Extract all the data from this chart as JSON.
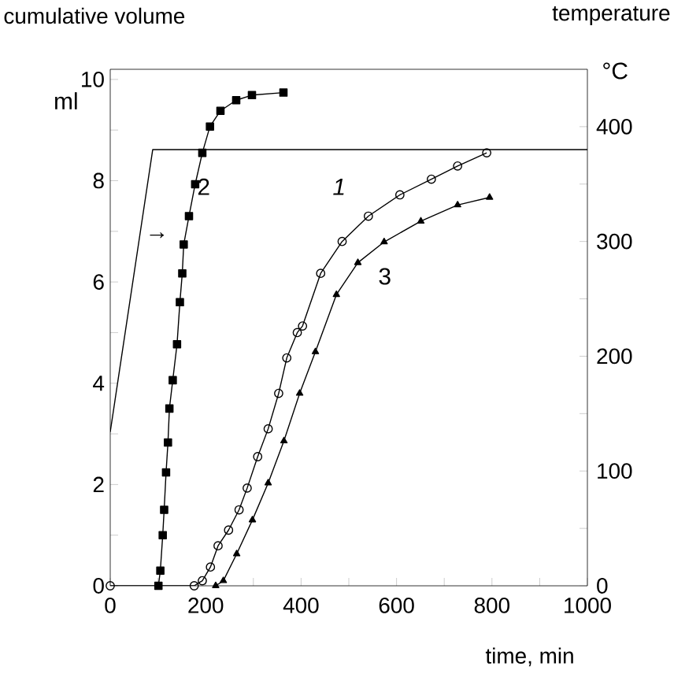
{
  "chart_data": {
    "type": "line",
    "xlabel": "time, min",
    "ylabel": "ml",
    "y2label": "°C",
    "annotations": [
      "cumulative volume",
      "temperature",
      "1",
      "2",
      "3",
      "→"
    ],
    "xlim": [
      0,
      1000
    ],
    "ylim": [
      0,
      10.2
    ],
    "y2lim": [
      0,
      450
    ],
    "xticks": [
      0,
      {
        "value": 100,
        "label": null
      },
      200,
      {
        "value": 300,
        "label": null
      },
      400,
      {
        "value": 500,
        "label": null
      },
      600,
      {
        "value": 700,
        "label": null
      },
      800,
      {
        "value": 900,
        "label": null
      },
      1000
    ],
    "yticks": [
      0,
      {
        "value": 1,
        "label": null
      },
      2,
      {
        "value": 3,
        "label": null
      },
      4,
      {
        "value": 5,
        "label": null
      },
      6,
      {
        "value": 7,
        "label": null
      },
      8,
      {
        "value": 9,
        "label": null
      },
      10
    ],
    "y2ticks": [
      0,
      {
        "value": 50,
        "label": null
      },
      100,
      {
        "value": 150,
        "label": null
      },
      200,
      {
        "value": 250,
        "label": null
      },
      300,
      {
        "value": 350,
        "label": null
      },
      400
    ],
    "grid": false,
    "line_style": "solid",
    "series": [
      {
        "color": "#000000",
        "marker": "circle",
        "x": [
          0,
          176,
          193,
          210,
          226,
          248,
          270,
          287,
          309,
          331,
          353,
          370,
          392,
          403,
          441,
          486,
          541,
          607,
          673,
          728,
          789
        ],
        "values": [
          0,
          0,
          0.1,
          0.37,
          0.79,
          1.1,
          1.5,
          1.93,
          2.55,
          3.1,
          3.8,
          4.5,
          5.0,
          5.13,
          6.17,
          6.8,
          7.3,
          7.72,
          8.03,
          8.29,
          8.55
        ]
      },
      {
        "color": "#000000",
        "marker": "square",
        "x": [
          101,
          105,
          110,
          113,
          117,
          121,
          124,
          131,
          140,
          146,
          151,
          154,
          165,
          178,
          193,
          209,
          231,
          264,
          297,
          363
        ],
        "values": [
          0,
          0.3,
          1.0,
          1.5,
          2.24,
          2.83,
          3.5,
          4.06,
          4.77,
          5.6,
          6.17,
          6.74,
          7.3,
          7.93,
          8.55,
          9.07,
          9.38,
          9.59,
          9.69,
          9.74
        ]
      },
      {
        "color": "#000000",
        "marker": "triangle",
        "x": [
          221,
          237,
          265,
          298,
          331,
          364,
          397,
          430,
          474,
          519,
          574,
          651,
          728,
          795
        ],
        "values": [
          0,
          0.1,
          0.63,
          1.3,
          2.03,
          2.86,
          3.8,
          4.62,
          5.75,
          6.38,
          6.79,
          7.2,
          7.52,
          7.67
        ]
      },
      {
        "color": "#000000",
        "marker": "none",
        "axis": "y2",
        "x": [
          0,
          89,
          1000
        ],
        "values": [
          134,
          380,
          380
        ]
      }
    ]
  }
}
